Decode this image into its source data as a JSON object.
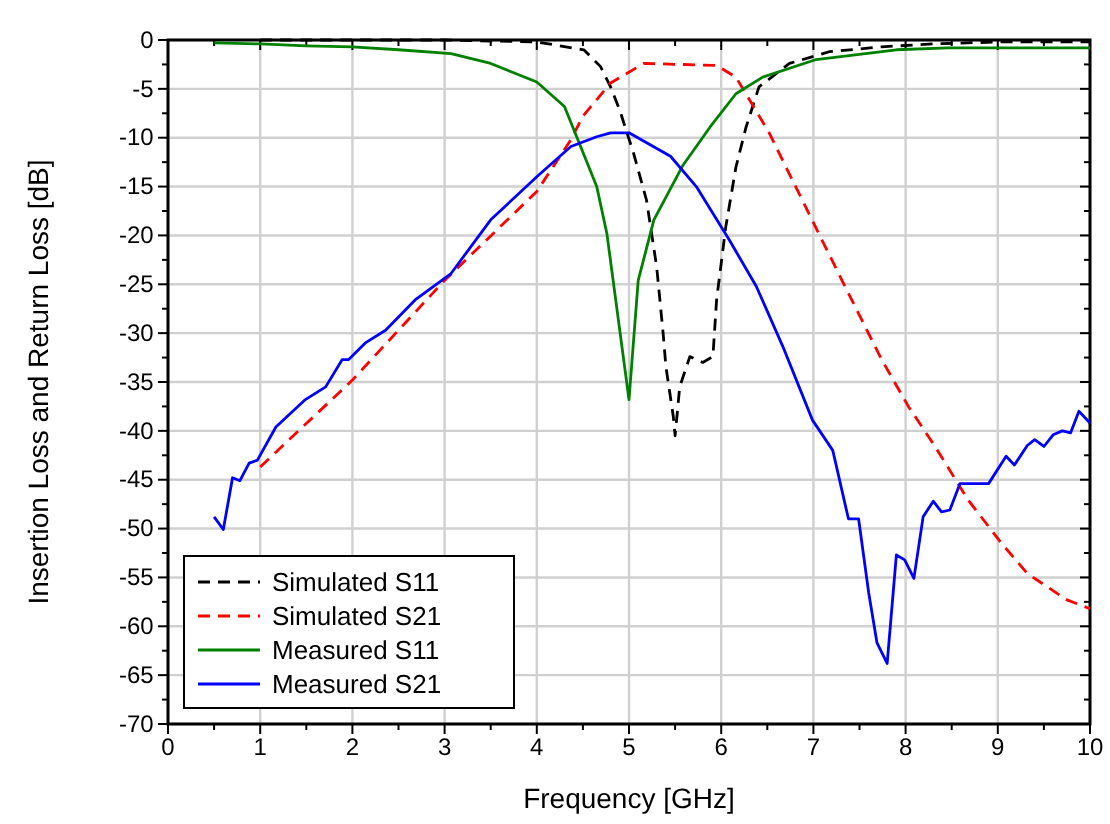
{
  "chart_data": {
    "type": "line",
    "xlabel": "Frequency [GHz]",
    "ylabel": "Insertion Loss and Return Loss [dB]",
    "xlim": [
      0,
      10
    ],
    "ylim": [
      -70,
      0
    ],
    "xticks": [
      0,
      {
        "value": 0.5,
        "label": null
      },
      1,
      {
        "value": 1.5,
        "label": null
      },
      2,
      {
        "value": 2.5,
        "label": null
      },
      3,
      {
        "value": 3.5,
        "label": null
      },
      4,
      {
        "value": 4.5,
        "label": null
      },
      5,
      {
        "value": 5.5,
        "label": null
      },
      6,
      {
        "value": 6.5,
        "label": null
      },
      7,
      {
        "value": 7.5,
        "label": null
      },
      8,
      {
        "value": 8.5,
        "label": null
      },
      9,
      {
        "value": 9.5,
        "label": null
      },
      10
    ],
    "yticks": [
      -70,
      {
        "value": -67.5,
        "label": null
      },
      -65,
      {
        "value": -62.5,
        "label": null
      },
      -60,
      {
        "value": -57.5,
        "label": null
      },
      -55,
      {
        "value": -52.5,
        "label": null
      },
      -50,
      {
        "value": -47.5,
        "label": null
      },
      -45,
      {
        "value": -42.5,
        "label": null
      },
      -40,
      {
        "value": -37.5,
        "label": null
      },
      -35,
      {
        "value": -32.5,
        "label": null
      },
      -30,
      {
        "value": -27.5,
        "label": null
      },
      -25,
      {
        "value": -22.5,
        "label": null
      },
      -20,
      {
        "value": -17.5,
        "label": null
      },
      -15,
      {
        "value": -12.5,
        "label": null
      },
      -10,
      {
        "value": -7.5,
        "label": null
      },
      -5,
      {
        "value": -2.5,
        "label": null
      },
      0
    ],
    "grid": true,
    "legend": "bottom left",
    "marker": "none",
    "series": [
      {
        "name": "Simulated S11",
        "color": "#000000",
        "line_style": "dashed",
        "x": [
          1,
          3,
          4,
          4.51,
          4.69,
          4.8,
          4.9,
          5.05,
          5.19,
          5.3,
          5.37,
          5.4,
          5.48,
          5.5,
          5.55,
          5.66,
          5.8,
          5.91,
          5.95,
          6.05,
          6.16,
          6.27,
          6.41,
          6.74,
          7.17,
          7.74,
          8.3,
          9,
          10
        ],
        "values": [
          0,
          0,
          -0.2,
          -1,
          -2.7,
          -4.8,
          -7.2,
          -11.6,
          -16.4,
          -23.2,
          -30,
          -33.4,
          -38.5,
          -40.5,
          -35.5,
          -32.4,
          -33,
          -32.4,
          -26.6,
          -19.1,
          -13,
          -8.9,
          -4.8,
          -2.4,
          -1.2,
          -0.7,
          -0.4,
          -0.2,
          -0.2
        ]
      },
      {
        "name": "Simulated S21",
        "color": "#ff0000",
        "line_style": "dashed",
        "x": [
          1,
          2,
          3,
          4,
          4.37,
          4.5,
          4.8,
          5.16,
          5.95,
          6.16,
          6.52,
          6.88,
          7.31,
          7.74,
          8.03,
          8.32,
          8.68,
          9.04,
          9.32,
          9.75,
          10
        ],
        "values": [
          -43.7,
          -34.8,
          -24.6,
          -15.5,
          -10.2,
          -7.8,
          -4.4,
          -2.4,
          -2.6,
          -3.8,
          -9.5,
          -16.4,
          -24.6,
          -32.7,
          -37.5,
          -41.6,
          -47.1,
          -51.5,
          -54.6,
          -57.3,
          -58.2
        ]
      },
      {
        "name": "Measured S11",
        "color": "#008000",
        "line_style": "solid",
        "x": [
          0.5,
          1,
          1.5,
          2,
          2.5,
          3.07,
          3.5,
          4,
          4.3,
          4.65,
          4.76,
          5,
          5.1,
          5.27,
          5.58,
          5.88,
          6.16,
          6.45,
          7.03,
          7.9,
          8.46,
          10
        ],
        "values": [
          -0.3,
          -0.4,
          -0.6,
          -0.7,
          -1,
          -1.4,
          -2.4,
          -4.3,
          -6.8,
          -15,
          -19.8,
          -36.8,
          -24.6,
          -18.4,
          -12.9,
          -8.9,
          -5.5,
          -3.8,
          -2,
          -1,
          -0.8,
          -0.8
        ]
      },
      {
        "name": "Measured S21",
        "color": "#0000ff",
        "line_style": "solid",
        "x": [
          0.5,
          0.6,
          0.7,
          0.78,
          0.88,
          0.97,
          1.17,
          1.49,
          1.71,
          1.89,
          1.96,
          2.14,
          2.36,
          2.68,
          3.07,
          3.5,
          4,
          4.37,
          4.65,
          4.8,
          5,
          5.45,
          5.73,
          6.09,
          6.38,
          6.67,
          6.99,
          7.21,
          7.38,
          7.49,
          7.6,
          7.69,
          7.8,
          7.9,
          7.99,
          8.09,
          8.19,
          8.3,
          8.39,
          8.48,
          8.59,
          8.9,
          9.09,
          9.18,
          9.32,
          9.4,
          9.5,
          9.6,
          9.7,
          9.79,
          9.88,
          10
        ],
        "values": [
          -48.8,
          -50.1,
          -44.8,
          -45.1,
          -43.3,
          -43,
          -39.6,
          -36.8,
          -35.5,
          -32.7,
          -32.7,
          -31,
          -29.7,
          -26.6,
          -23.9,
          -18.4,
          -14,
          -10.9,
          -9.9,
          -9.5,
          -9.5,
          -11.9,
          -15,
          -20.5,
          -25.2,
          -31.4,
          -38.9,
          -42,
          -49,
          -49,
          -56.6,
          -61.7,
          -63.8,
          -52.7,
          -53.2,
          -55.1,
          -48.8,
          -47.2,
          -48.3,
          -48.1,
          -45.4,
          -45.4,
          -42.6,
          -43.5,
          -41.5,
          -40.9,
          -41.6,
          -40.4,
          -40,
          -40.2,
          -38,
          -39.2
        ]
      }
    ]
  }
}
